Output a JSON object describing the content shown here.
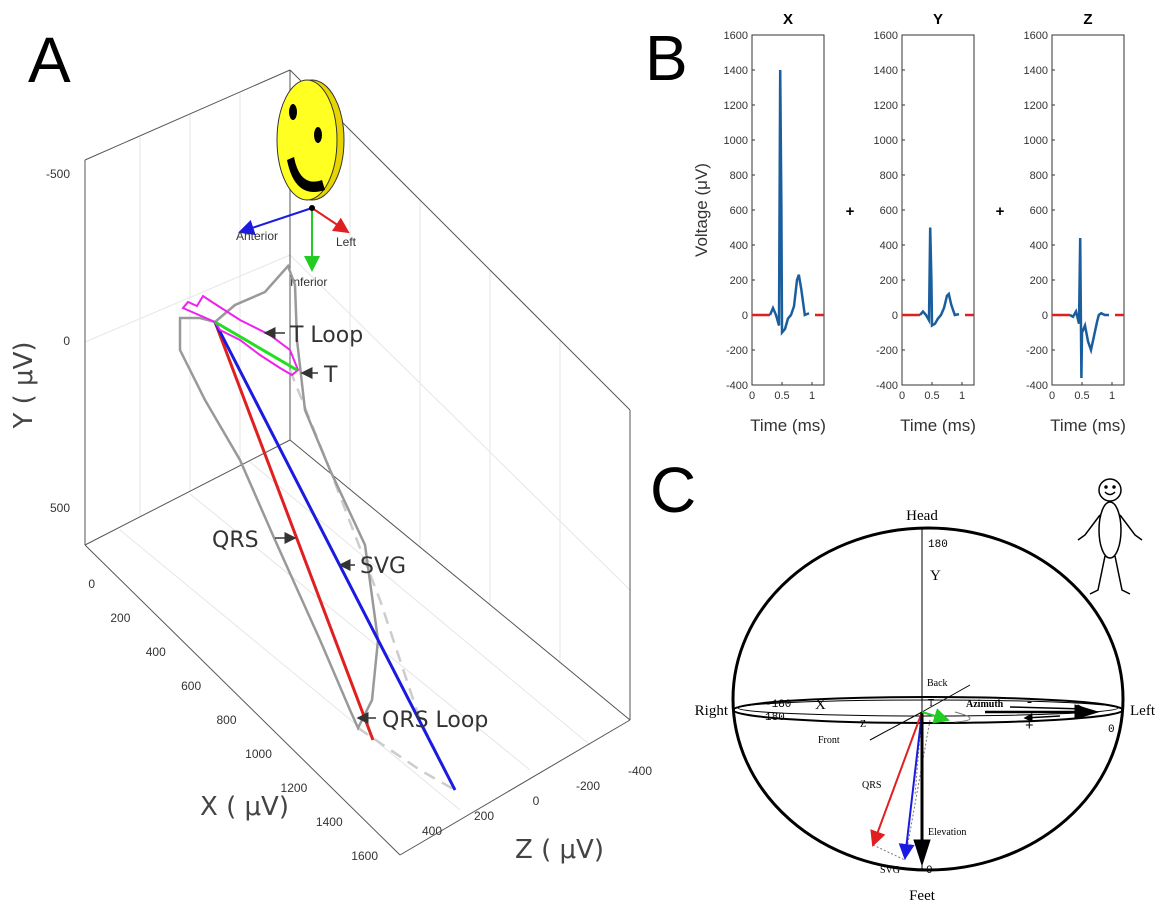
{
  "panel_labels": [
    "A",
    "B",
    "C"
  ],
  "panel_a": {
    "x_label": "X ( μV)",
    "y_label": "Y ( μV)",
    "z_label": "Z ( μV)",
    "x_ticks": [
      0,
      200,
      400,
      600,
      800,
      1000,
      1200,
      1400,
      1600
    ],
    "y_ticks": [
      -500,
      0,
      500
    ],
    "z_ticks": [
      -400,
      -200,
      0,
      200,
      400
    ],
    "orientation": [
      "Anterior",
      "Left",
      "Inferior"
    ],
    "annotations": [
      "T Loop",
      "T",
      "QRS",
      "SVG",
      "QRS Loop"
    ]
  },
  "chart_data": [
    {
      "type": "line",
      "title": "X",
      "xlabel": "Time (ms)",
      "ylabel": "Voltage (μV)",
      "x": [
        0,
        0.3,
        0.35,
        0.4,
        0.45,
        0.47,
        0.49,
        0.5,
        0.55,
        0.6,
        0.65,
        0.7,
        0.75,
        0.78,
        0.82,
        0.88,
        0.95,
        1.05,
        1.2
      ],
      "series": [
        {
          "color": "#e02020",
          "values": [
            0,
            0,
            null,
            null,
            null,
            null,
            null,
            null,
            null,
            null,
            null,
            null,
            null,
            null,
            null,
            null,
            null,
            0,
            0
          ]
        },
        {
          "color": "#1b5e9e",
          "values": [
            null,
            0,
            40,
            0,
            -60,
            1400,
            600,
            -100,
            -80,
            -20,
            0,
            50,
            200,
            230,
            150,
            0,
            10,
            null,
            null
          ]
        }
      ],
      "xlim": [
        0,
        1.2
      ],
      "xticks": [
        0,
        0.5,
        1
      ],
      "ylim": [
        -400,
        1600
      ],
      "yticks": [
        -400,
        -200,
        0,
        200,
        400,
        600,
        800,
        1000,
        1200,
        1400,
        1600
      ]
    },
    {
      "type": "line",
      "title": "Y",
      "xlabel": "Time (ms)",
      "x": [
        0,
        0.3,
        0.35,
        0.4,
        0.45,
        0.47,
        0.49,
        0.5,
        0.55,
        0.6,
        0.65,
        0.7,
        0.75,
        0.78,
        0.82,
        0.88,
        0.95,
        1.05,
        1.2
      ],
      "series": [
        {
          "color": "#e02020",
          "values": [
            0,
            0,
            null,
            null,
            null,
            null,
            null,
            null,
            null,
            null,
            null,
            null,
            null,
            null,
            null,
            null,
            null,
            0,
            0
          ]
        },
        {
          "color": "#1b5e9e",
          "values": [
            null,
            0,
            20,
            0,
            -30,
            500,
            200,
            -60,
            -50,
            -20,
            0,
            40,
            110,
            120,
            60,
            0,
            5,
            null,
            null
          ]
        }
      ],
      "xlim": [
        0,
        1.2
      ],
      "xticks": [
        0,
        0.5,
        1
      ],
      "ylim": [
        -400,
        1600
      ],
      "yticks": [
        -400,
        -200,
        0,
        200,
        400,
        600,
        800,
        1000,
        1200,
        1400,
        1600
      ]
    },
    {
      "type": "line",
      "title": "Z",
      "xlabel": "Time (ms)",
      "x": [
        0,
        0.3,
        0.35,
        0.4,
        0.45,
        0.47,
        0.49,
        0.5,
        0.55,
        0.6,
        0.65,
        0.7,
        0.75,
        0.78,
        0.82,
        0.88,
        0.95,
        1.05,
        1.2
      ],
      "series": [
        {
          "color": "#e02020",
          "values": [
            0,
            0,
            null,
            null,
            null,
            null,
            null,
            null,
            null,
            null,
            null,
            null,
            null,
            null,
            null,
            null,
            null,
            0,
            0
          ]
        },
        {
          "color": "#1b5e9e",
          "values": [
            null,
            0,
            -10,
            20,
            -50,
            440,
            -360,
            -100,
            -60,
            -150,
            -200,
            -120,
            -40,
            0,
            10,
            0,
            0,
            null,
            null
          ]
        }
      ],
      "xlim": [
        0,
        1.2
      ],
      "xticks": [
        0,
        0.5,
        1
      ],
      "ylim": [
        -400,
        1600
      ],
      "yticks": [
        -400,
        -200,
        0,
        200,
        400,
        600,
        800,
        1000,
        1200,
        1400,
        1600
      ]
    }
  ],
  "plus_signs": [
    "+",
    "+"
  ],
  "panel_c": {
    "head": "Head",
    "feet": "Feet",
    "right": "Right",
    "left": "Left",
    "y_axis": "Y",
    "top_angle": "180",
    "back": "Back",
    "front": "Front",
    "x_axis": "X",
    "minus_180": "-180",
    "plus_180": "180",
    "z_axis": "Z",
    "t": "T",
    "azimuth": "Azimuth",
    "minus": "-",
    "plus": "+",
    "right_zero": "0",
    "qrs": "QRS",
    "svg": "SVG",
    "elevation": "Elevation",
    "bottom_zero": "0"
  }
}
